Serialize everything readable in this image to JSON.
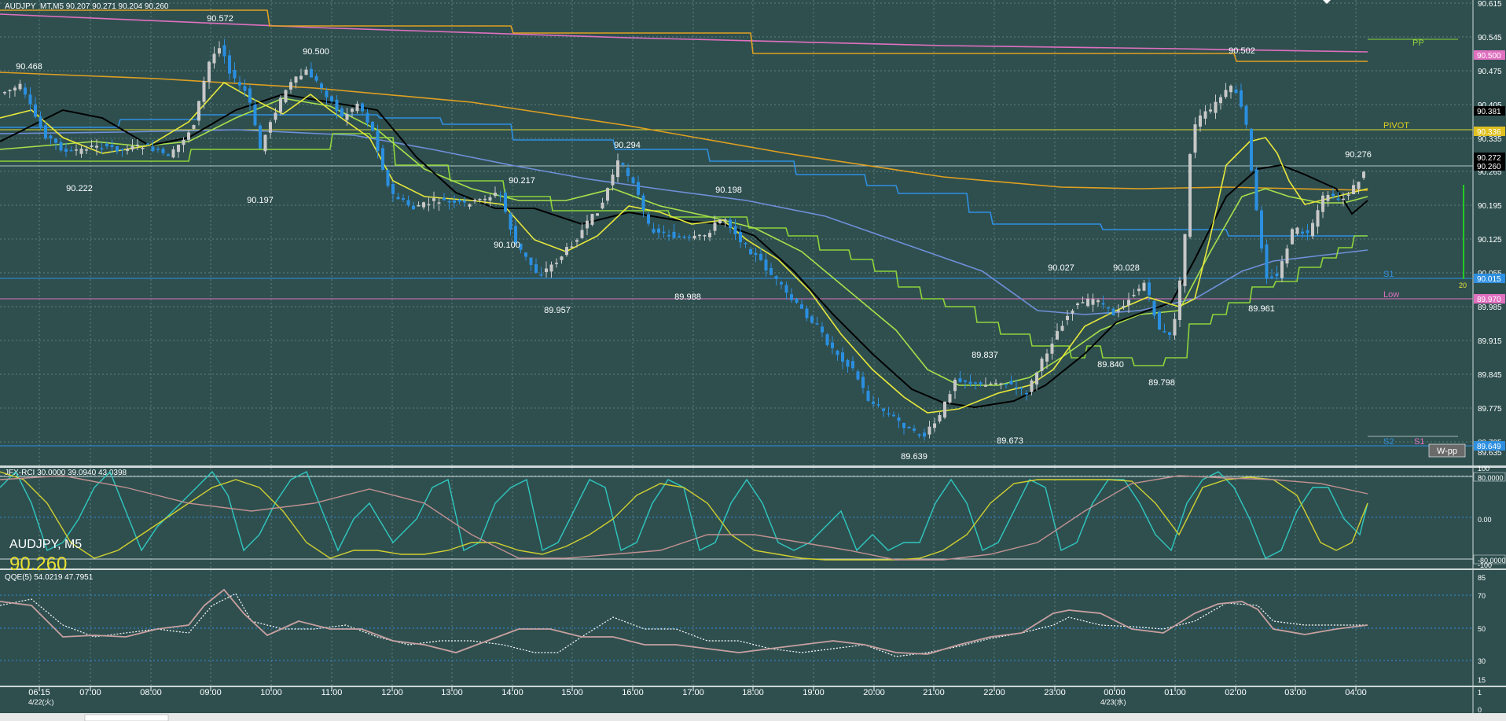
{
  "window": {
    "title": "AUDJPY_MT,M5  90.207 90.271 90.204 90.260"
  },
  "overlay": {
    "symbol": "AUDJPY, M5",
    "price": "90.260"
  },
  "colors": {
    "background": "#2f4f4f",
    "grid": "#5f7f7f",
    "bull": "#c8c8c8",
    "bear": "#2a8fe0",
    "ema_yellow": "#e8e83a",
    "ema_lime": "#a8e04a",
    "ma_black": "#000000",
    "ma_blue": "#6f8fd8",
    "ma_orange": "#e0a020",
    "pink": "#e070c0",
    "step_blue": "#2e8fe0",
    "step_lime": "#8ed43a",
    "cyan": "#2fc8c0",
    "rosy": "#c09090"
  },
  "price_axis": {
    "ticks": [
      "90.615",
      "90.545",
      "90.475",
      "90.405",
      "90.335",
      "90.265",
      "90.195",
      "90.125",
      "90.055",
      "89.985",
      "89.915",
      "89.845",
      "89.775",
      "89.705",
      "89.635"
    ],
    "tags": [
      {
        "text": "90.500",
        "color": "#e070c0"
      },
      {
        "text": "90.381",
        "color": "#000000"
      },
      {
        "text": "90.336",
        "color": "#e0c020"
      },
      {
        "text": "90.272",
        "color": "#000000"
      },
      {
        "text": "90.260",
        "color": "#000000"
      },
      {
        "text": "90.015",
        "color": "#2e8fe0"
      },
      {
        "text": "89.970",
        "color": "#e070c0"
      },
      {
        "text": "89.649",
        "color": "#2e8fe0"
      }
    ]
  },
  "pivot_labels": {
    "pp": "PP",
    "pivot": "PIVOT",
    "s1": "S1",
    "low": "Low",
    "s2_bottom": "S2",
    "s1_bottom": "S1",
    "wpp": "W-pp",
    "volume_marker": "20"
  },
  "price_annotations": [
    "90.468",
    "90.572",
    "90.500",
    "90.222",
    "90.197",
    "90.217",
    "90.100",
    "90.294",
    "89.957",
    "90.198",
    "89.988",
    "89.639",
    "89.837",
    "89.673",
    "90.027",
    "90.028",
    "89.840",
    "89.798",
    "90.502",
    "89.961",
    "90.276"
  ],
  "time_axis": {
    "labels": [
      "06:15",
      "07:00",
      "08:00",
      "09:00",
      "10:00",
      "11:00",
      "12:00",
      "13:00",
      "14:00",
      "15:00",
      "16:00",
      "17:00",
      "18:00",
      "19:00",
      "20:00",
      "21:00",
      "22:00",
      "23:00",
      "00:00",
      "01:00",
      "02:00",
      "03:00",
      "04:00"
    ],
    "date1": "4/22(火)",
    "date2": "4/23(水)"
  },
  "rci_panel": {
    "title": "JFX-RCI 30.0000 39.0940 43.0398",
    "scale": [
      "100",
      "80.0000",
      "0.00",
      "-80.0000",
      "-100"
    ]
  },
  "qqe_panel": {
    "title": "QQE(5) 54.0219 47.7951",
    "scale": [
      "85",
      "70",
      "50",
      "30",
      "15"
    ]
  },
  "volume_panel": {
    "scale": [
      "1",
      "0"
    ]
  }
}
